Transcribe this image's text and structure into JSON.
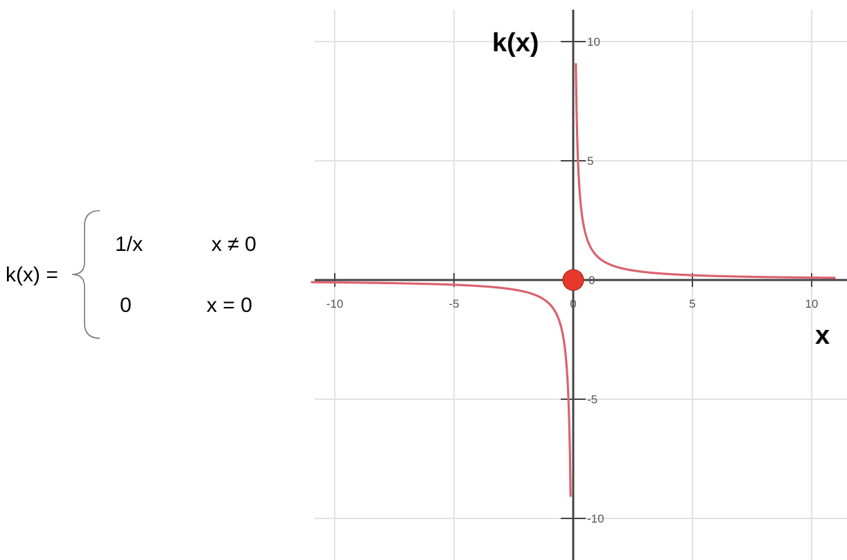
{
  "formula": {
    "lhs": "k(x) =",
    "cases": [
      {
        "expr": "1/x",
        "condition": "x ≠ 0"
      },
      {
        "expr": "0",
        "condition": "x = 0"
      }
    ]
  },
  "chart_data": {
    "type": "line",
    "title": "",
    "xlabel": "x",
    "ylabel": "k(x)",
    "xlim": [
      -11,
      11
    ],
    "ylim": [
      -11,
      11
    ],
    "grid": true,
    "xticks": [
      -10,
      -5,
      0,
      5,
      10
    ],
    "yticks": [
      10,
      5,
      0,
      -5,
      -10
    ],
    "xtick_labels": [
      "-10",
      "-5",
      "0",
      "5",
      "10"
    ],
    "ytick_labels": [
      "10",
      "5",
      "0",
      "-5",
      "-10"
    ],
    "series": [
      {
        "color": "#d9636f",
        "function": "1/x",
        "domain": [
          [
            -11,
            0
          ],
          [
            0,
            11
          ]
        ],
        "x": [
          -11,
          -10,
          -8,
          -6,
          -5,
          -4,
          -3,
          -2,
          -1,
          -0.5,
          -0.2,
          -0.1,
          0.1,
          0.2,
          0.5,
          1,
          2,
          3,
          4,
          5,
          6,
          8,
          10,
          11
        ],
        "y": [
          -0.091,
          -0.1,
          -0.125,
          -0.167,
          -0.2,
          -0.25,
          -0.333,
          -0.5,
          -1,
          -2,
          -5,
          -10,
          10,
          5,
          2,
          1,
          0.5,
          0.333,
          0.25,
          0.2,
          0.167,
          0.125,
          0.1,
          0.091
        ]
      }
    ],
    "points": [
      {
        "x": 0,
        "y": 0,
        "color": "#e8382c"
      }
    ]
  }
}
